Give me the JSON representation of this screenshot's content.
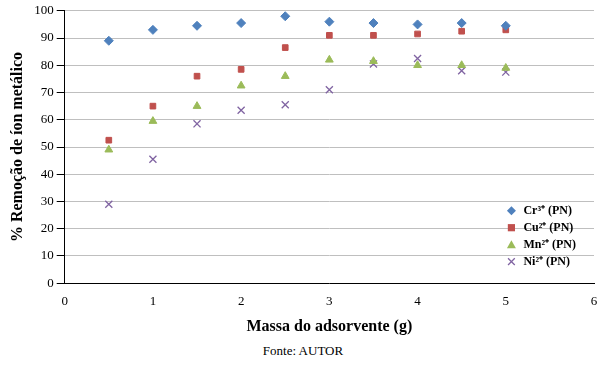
{
  "chart_data": {
    "type": "scatter",
    "x_label": "Massa do adsorvente (g)",
    "y_label": "% Remoção de íon metálico",
    "caption": "Fonte: AUTOR",
    "x": [
      0.5,
      1,
      1.5,
      2,
      2.5,
      3,
      3.5,
      4,
      4.5,
      5
    ],
    "series": [
      {
        "name": "Cr³⁺ (PN)",
        "color": "#4f81bd",
        "marker": "diamond",
        "values": [
          89,
          93,
          94.5,
          95.5,
          98,
          96,
          95.5,
          95,
          95.5,
          94.5
        ]
      },
      {
        "name": "Cu²⁺ (PN)",
        "color": "#c0504d",
        "marker": "square",
        "values": [
          52.5,
          65,
          76,
          78.5,
          86.5,
          91,
          91,
          91.5,
          92.5,
          93
        ]
      },
      {
        "name": "Mn²⁺ (PN)",
        "color": "#9bbb59",
        "marker": "triangle",
        "values": [
          49,
          59.5,
          65,
          72.5,
          76,
          82,
          81.5,
          80,
          80,
          79
        ]
      },
      {
        "name": "Ni²⁺ (PN)",
        "color": "#8064a2",
        "marker": "x",
        "values": [
          29,
          45.5,
          58.5,
          63.5,
          65.5,
          71,
          80.5,
          82.5,
          78,
          77.5
        ]
      }
    ],
    "xlim": [
      0,
      6
    ],
    "xticks": [
      0,
      1,
      2,
      3,
      4,
      5,
      6
    ],
    "ylim": [
      0,
      100
    ],
    "yticks": [
      0,
      10,
      20,
      30,
      40,
      50,
      60,
      70,
      80,
      90,
      100
    ],
    "grid": "y",
    "legend": "bottom right"
  }
}
